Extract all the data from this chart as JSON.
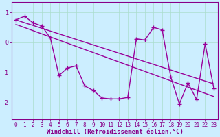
{
  "title": "",
  "xlabel": "Windchill (Refroidissement éolien,°C)",
  "ylabel": "",
  "xlim": [
    -0.5,
    23.5
  ],
  "ylim": [
    -2.55,
    1.35
  ],
  "yticks": [
    -2,
    -1,
    0,
    1
  ],
  "xticks": [
    0,
    1,
    2,
    3,
    4,
    5,
    6,
    7,
    8,
    9,
    10,
    11,
    12,
    13,
    14,
    15,
    16,
    17,
    18,
    19,
    20,
    21,
    22,
    23
  ],
  "bg_color": "#cceeff",
  "line_color": "#990099",
  "line_width": 1.0,
  "marker": "+",
  "marker_size": 4,
  "series1_x": [
    0,
    1,
    2,
    3,
    4,
    5,
    6,
    7,
    8,
    9,
    10,
    11,
    12,
    13,
    14,
    15,
    16,
    17,
    18,
    19,
    20,
    21,
    22,
    23
  ],
  "series1_y": [
    0.75,
    0.87,
    0.65,
    0.55,
    0.15,
    -1.1,
    -0.85,
    -0.78,
    -1.45,
    -1.6,
    -1.85,
    -1.88,
    -1.88,
    -1.83,
    0.12,
    0.08,
    0.5,
    0.42,
    -1.15,
    -2.05,
    -1.35,
    -1.9,
    -0.05,
    -1.52
  ],
  "series2_x": [
    0,
    23
  ],
  "series2_y": [
    0.75,
    -1.38
  ],
  "series3_x": [
    0,
    23
  ],
  "series3_y": [
    0.6,
    -1.8
  ],
  "spine_color": "#880088",
  "tick_color": "#880088",
  "grid_color": "#aaddcc",
  "xlabel_bold": true,
  "xlabel_fontsize": 6.5,
  "tick_fontsize": 5.5
}
